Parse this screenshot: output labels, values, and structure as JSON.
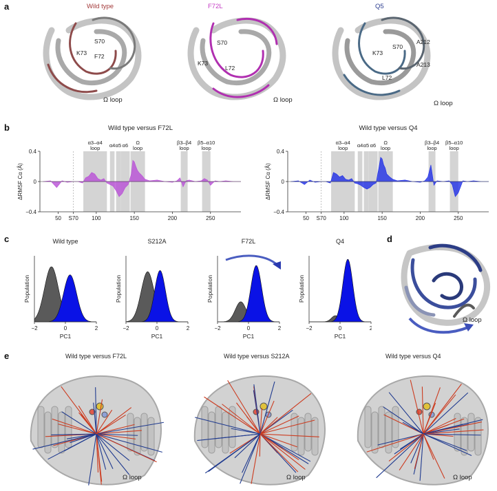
{
  "panel_a": {
    "letter": "a",
    "structures": [
      {
        "title": "Wild type",
        "title_color": "#a33a3a",
        "residues": [
          "S70",
          "K73",
          "F72"
        ],
        "loop_label": "Ω loop",
        "highlight": "#8e4b4b"
      },
      {
        "title": "F72L",
        "title_color": "#c43bc4",
        "residues": [
          "S70",
          "K73",
          "L72"
        ],
        "loop_label": "Ω loop",
        "highlight": "#b02fb0"
      },
      {
        "title": "Q5",
        "title_color": "#2b3d8f",
        "residues": [
          "S70",
          "K73",
          "A212",
          "A213",
          "L72"
        ],
        "loop_label": "Ω loop",
        "highlight": "#4a6a86"
      }
    ]
  },
  "panel_b": {
    "letter": "b",
    "chart_data": [
      {
        "type": "area",
        "title": "Wild type versus F72L",
        "ylabel": "ΔRMSF Cα (Å)",
        "ylim": [
          -0.4,
          0.4
        ],
        "yticks": [
          "0.4",
          "0",
          "−0.4"
        ],
        "xlim": [
          26,
          290
        ],
        "xticks": [
          {
            "value": 50,
            "label": "50"
          },
          {
            "value": 70,
            "label": "S70"
          },
          {
            "value": 100,
            "label": "100"
          },
          {
            "value": 150,
            "label": "150"
          },
          {
            "value": 200,
            "label": "200"
          },
          {
            "value": 250,
            "label": "250"
          }
        ],
        "color": "#b84fd6",
        "regions": [
          {
            "label": "α3–α4 loop",
            "x": [
              83,
              114
            ]
          },
          {
            "label": "α4",
            "x": [
              118,
              124
            ]
          },
          {
            "label": "α5",
            "x": [
              126,
              132
            ]
          },
          {
            "label": "α6",
            "x": [
              132,
              144
            ]
          },
          {
            "label": "Ω loop",
            "x": [
              145,
              164
            ]
          },
          {
            "label": "β3–β4 loop",
            "x": [
              211,
              220
            ]
          },
          {
            "label": "β5–α10 loop",
            "x": [
              239,
              250
            ]
          }
        ],
        "x": [
          30,
          40,
          48,
          55,
          62,
          70,
          76,
          82,
          86,
          90,
          94,
          98,
          102,
          106,
          110,
          114,
          118,
          122,
          126,
          130,
          134,
          138,
          142,
          146,
          148,
          150,
          152,
          154,
          156,
          160,
          164,
          170,
          180,
          190,
          200,
          206,
          210,
          214,
          218,
          222,
          230,
          238,
          242,
          246,
          250,
          256,
          262,
          270,
          280,
          290
        ],
        "values": [
          0.0,
          0.01,
          -0.08,
          0.01,
          -0.01,
          0.0,
          0.0,
          -0.02,
          0.05,
          0.07,
          0.12,
          0.1,
          0.04,
          0.02,
          0.04,
          -0.02,
          -0.04,
          -0.06,
          -0.12,
          -0.2,
          -0.16,
          -0.08,
          -0.04,
          0.1,
          0.28,
          0.26,
          0.2,
          0.15,
          0.12,
          0.08,
          0.03,
          0.01,
          0.02,
          0.0,
          -0.01,
          0.01,
          0.05,
          -0.07,
          0.01,
          0.02,
          0.0,
          0.01,
          0.04,
          0.02,
          -0.05,
          0.01,
          0.0,
          0.01,
          0.0,
          0.0
        ]
      },
      {
        "type": "area",
        "title": "Wild type versus Q4",
        "ylabel": "ΔRMSF Cα (Å)",
        "ylim": [
          -0.4,
          0.4
        ],
        "yticks": [
          "0.4",
          "0",
          "−0.4"
        ],
        "xlim": [
          26,
          290
        ],
        "xticks": [
          {
            "value": 50,
            "label": "50"
          },
          {
            "value": 70,
            "label": "S70"
          },
          {
            "value": 100,
            "label": "100"
          },
          {
            "value": 150,
            "label": "150"
          },
          {
            "value": 200,
            "label": "200"
          },
          {
            "value": 250,
            "label": "250"
          }
        ],
        "color": "#1f2ee6",
        "regions": [
          {
            "label": "α3–α4 loop",
            "x": [
              83,
              114
            ]
          },
          {
            "label": "α4",
            "x": [
              118,
              124
            ]
          },
          {
            "label": "α5",
            "x": [
              126,
              132
            ]
          },
          {
            "label": "α6",
            "x": [
              132,
              144
            ]
          },
          {
            "label": "Ω loop",
            "x": [
              145,
              164
            ]
          },
          {
            "label": "β3–β4 loop",
            "x": [
              211,
              220
            ]
          },
          {
            "label": "β5–α10 loop",
            "x": [
              239,
              250
            ]
          }
        ],
        "x": [
          30,
          40,
          48,
          55,
          62,
          70,
          76,
          82,
          86,
          90,
          94,
          98,
          102,
          106,
          110,
          114,
          118,
          122,
          126,
          130,
          134,
          138,
          142,
          146,
          148,
          150,
          152,
          154,
          156,
          160,
          164,
          170,
          180,
          190,
          200,
          206,
          210,
          214,
          218,
          222,
          230,
          238,
          242,
          246,
          250,
          256,
          262,
          270,
          280,
          290
        ],
        "values": [
          0.0,
          0.01,
          -0.04,
          0.02,
          -0.01,
          0.0,
          0.0,
          -0.02,
          0.12,
          0.1,
          0.06,
          0.08,
          0.03,
          0.02,
          0.04,
          -0.02,
          -0.03,
          -0.05,
          -0.08,
          -0.1,
          -0.08,
          -0.04,
          -0.02,
          0.2,
          0.32,
          0.3,
          0.22,
          0.18,
          0.1,
          0.06,
          0.03,
          0.01,
          0.02,
          0.0,
          -0.01,
          0.01,
          0.06,
          0.22,
          -0.05,
          0.01,
          0.0,
          0.01,
          -0.04,
          -0.2,
          -0.15,
          0.01,
          0.0,
          0.01,
          0.0,
          0.0
        ]
      }
    ]
  },
  "panel_c": {
    "letter": "c",
    "chart_data": [
      {
        "type": "area",
        "title": "Wild type",
        "xlabel": "PC1",
        "ylabel": "Population",
        "xlim": [
          -2,
          2
        ],
        "xticks": [
          "−2",
          "0",
          "2"
        ],
        "series": [
          {
            "name": "",
            "color": "#5a5a5a",
            "center": -0.9,
            "width": 0.45,
            "height": 0.88
          },
          {
            "name": "",
            "color": "#0a12e6",
            "center": 0.3,
            "width": 0.42,
            "height": 0.75
          }
        ]
      },
      {
        "type": "area",
        "title": "S212A",
        "xlabel": "PC1",
        "ylabel": "Population",
        "xlim": [
          -2,
          2
        ],
        "xticks": [
          "−2",
          "0",
          "2"
        ],
        "series": [
          {
            "name": "",
            "color": "#5a5a5a",
            "center": -0.6,
            "width": 0.42,
            "height": 0.8
          },
          {
            "name": "",
            "color": "#0a12e6",
            "center": 0.2,
            "width": 0.35,
            "height": 0.82
          }
        ]
      },
      {
        "type": "area",
        "title": "F72L",
        "xlabel": "PC1",
        "ylabel": "Population",
        "xlim": [
          -2,
          2
        ],
        "xticks": [
          "−2",
          "0",
          "2"
        ],
        "series": [
          {
            "name": "",
            "color": "#5a5a5a",
            "center": -0.5,
            "width": 0.35,
            "height": 0.32
          },
          {
            "name": "",
            "color": "#0a12e6",
            "center": 0.5,
            "width": 0.35,
            "height": 0.9
          }
        ]
      },
      {
        "type": "area",
        "title": "Q4",
        "xlabel": "PC1",
        "ylabel": "Population",
        "xlim": [
          -2,
          2
        ],
        "xticks": [
          "−2",
          "0",
          "2"
        ],
        "series": [
          {
            "name": "",
            "color": "#5a5a5a",
            "center": -0.3,
            "width": 0.25,
            "height": 0.1
          },
          {
            "name": "",
            "color": "#0a12e6",
            "center": 0.5,
            "width": 0.32,
            "height": 1.0
          }
        ]
      }
    ]
  },
  "panel_d": {
    "letter": "d",
    "loop_label": "Ω loop"
  },
  "panel_e": {
    "letter": "e",
    "structures": [
      {
        "title": "Wild type versus F72L",
        "loop_label": "Ω loop"
      },
      {
        "title": "Wild type versus S212A",
        "loop_label": "Ω loop"
      },
      {
        "title": "Wild type versus Q4",
        "loop_label": "Ω loop"
      }
    ]
  },
  "colors": {
    "gray_region": "#d4d4d4",
    "red_line": "#cc3b1f",
    "blue_line": "#1f3a8f",
    "ribbon_gray": "#b5b5b5"
  }
}
